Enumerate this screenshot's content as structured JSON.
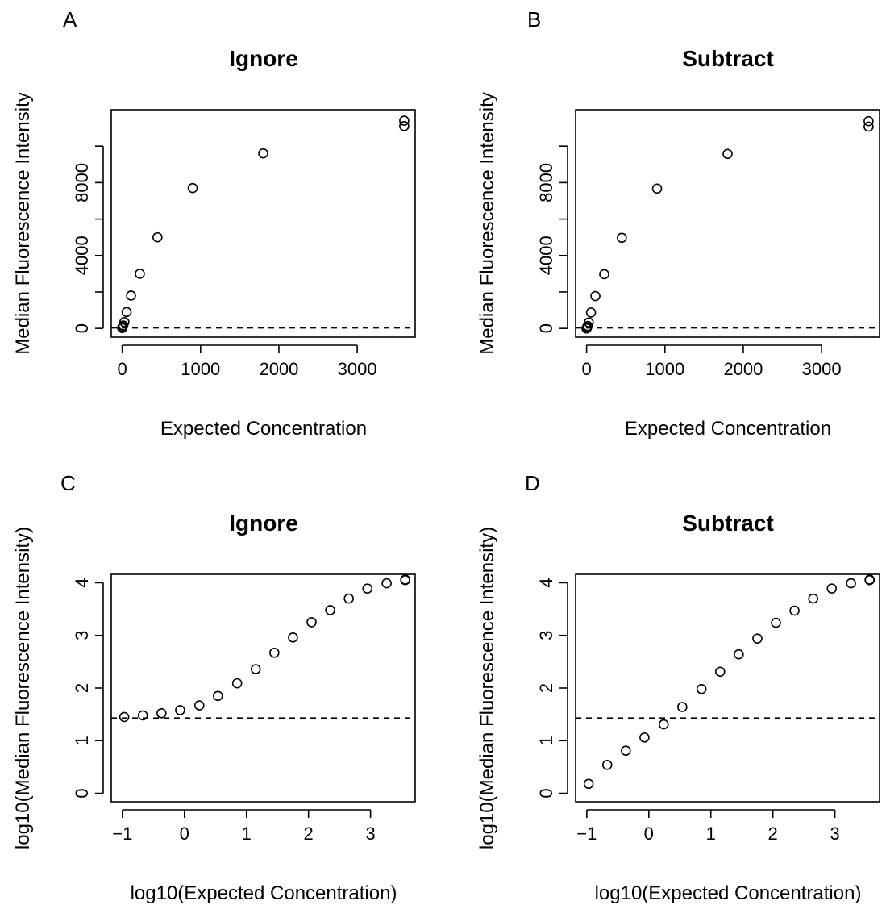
{
  "chart_data": [
    {
      "id": "A",
      "panel_label": "A",
      "type": "scatter",
      "title": "Ignore",
      "xlabel": "Expected Concentration",
      "ylabel": "Median Fluorescence Intensity",
      "xlim": [
        -140,
        3740
      ],
      "ylim": [
        -480,
        12000
      ],
      "xticks": [
        0,
        1000,
        2000,
        3000
      ],
      "xtick_labels": [
        "0",
        "1000",
        "2000",
        "3000"
      ],
      "yticks": [
        0,
        2000,
        4000,
        6000,
        8000,
        10000
      ],
      "ytick_labels": [
        "0",
        "",
        "4000",
        "",
        "8000",
        ""
      ],
      "hline": 27,
      "grid": false,
      "x": [
        0.11,
        0.22,
        0.44,
        0.88,
        1.76,
        3.5,
        7.0,
        14.1,
        28.1,
        56.3,
        112.5,
        225,
        450,
        900,
        1800,
        3600,
        3600
      ],
      "y": [
        28,
        30,
        33,
        38,
        45,
        58,
        90,
        160,
        350,
        900,
        1800,
        3000,
        5000,
        7700,
        9600,
        11100,
        11400
      ]
    },
    {
      "id": "B",
      "panel_label": "B",
      "type": "scatter",
      "title": "Subtract",
      "xlabel": "Expected Concentration",
      "ylabel": "Median Fluorescence Intensity",
      "xlim": [
        -140,
        3740
      ],
      "ylim": [
        -480,
        12000
      ],
      "xticks": [
        0,
        1000,
        2000,
        3000
      ],
      "xtick_labels": [
        "0",
        "1000",
        "2000",
        "3000"
      ],
      "yticks": [
        0,
        2000,
        4000,
        6000,
        8000,
        10000
      ],
      "ytick_labels": [
        "0",
        "",
        "4000",
        "",
        "8000",
        ""
      ],
      "hline": 27,
      "grid": false,
      "x": [
        0.11,
        0.22,
        0.44,
        0.88,
        1.76,
        3.5,
        7.0,
        14.1,
        28.1,
        56.3,
        112.5,
        225,
        450,
        900,
        1800,
        3600,
        3600
      ],
      "y": [
        1.5,
        3.5,
        6.5,
        11,
        20,
        31,
        63,
        133,
        323,
        873,
        1773,
        2973,
        4973,
        7673,
        9573,
        11073,
        11373
      ]
    },
    {
      "id": "C",
      "panel_label": "C",
      "type": "scatter",
      "title": "Ignore",
      "xlabel": "log10(Expected Concentration)",
      "ylabel": "log10(Median Fluorescence Intensity)",
      "xlim": [
        -1.18,
        3.72
      ],
      "ylim": [
        -0.16,
        4.16
      ],
      "xticks": [
        -1,
        0,
        1,
        2,
        3
      ],
      "xtick_labels": [
        "−1",
        "0",
        "1",
        "2",
        "3"
      ],
      "yticks": [
        0,
        1,
        2,
        3,
        4
      ],
      "ytick_labels": [
        "0",
        "1",
        "2",
        "3",
        "4"
      ],
      "hline": 1.43,
      "grid": false,
      "x": [
        -0.97,
        -0.67,
        -0.37,
        -0.07,
        0.24,
        0.54,
        0.85,
        1.15,
        1.45,
        1.75,
        2.05,
        2.35,
        2.65,
        2.95,
        3.26,
        3.56,
        3.56
      ],
      "y": [
        1.45,
        1.48,
        1.52,
        1.58,
        1.67,
        1.85,
        2.09,
        2.36,
        2.67,
        2.96,
        3.25,
        3.48,
        3.7,
        3.89,
        3.99,
        4.05,
        4.06
      ]
    },
    {
      "id": "D",
      "panel_label": "D",
      "type": "scatter",
      "title": "Subtract",
      "xlabel": "log10(Expected Concentration)",
      "ylabel": "log10(Median Fluorescence Intensity)",
      "xlim": [
        -1.18,
        3.72
      ],
      "ylim": [
        -0.16,
        4.16
      ],
      "xticks": [
        -1,
        0,
        1,
        2,
        3
      ],
      "xtick_labels": [
        "−1",
        "0",
        "1",
        "2",
        "3"
      ],
      "yticks": [
        0,
        1,
        2,
        3,
        4
      ],
      "ytick_labels": [
        "0",
        "1",
        "2",
        "3",
        "4"
      ],
      "hline": 1.43,
      "grid": false,
      "x": [
        -0.97,
        -0.67,
        -0.37,
        -0.07,
        0.24,
        0.54,
        0.85,
        1.15,
        1.45,
        1.75,
        2.05,
        2.35,
        2.65,
        2.95,
        3.26,
        3.56,
        3.56
      ],
      "y": [
        0.18,
        0.54,
        0.81,
        1.06,
        1.31,
        1.64,
        1.98,
        2.31,
        2.64,
        2.94,
        3.24,
        3.47,
        3.7,
        3.89,
        3.99,
        4.05,
        4.06
      ]
    }
  ]
}
